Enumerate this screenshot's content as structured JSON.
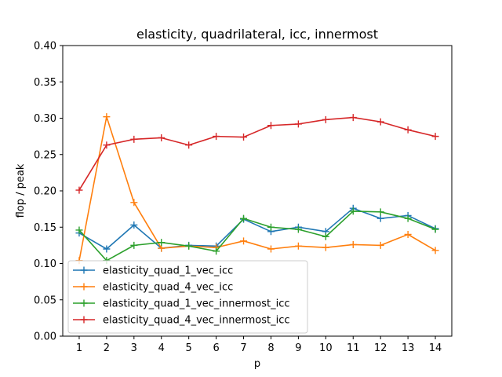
{
  "chart_data": {
    "type": "line",
    "title": "elasticity, quadrilateral, icc, innermost",
    "xlabel": "p",
    "ylabel": "flop / peak",
    "x": [
      1,
      2,
      3,
      4,
      5,
      6,
      7,
      8,
      9,
      10,
      11,
      12,
      13,
      14
    ],
    "xticks": [
      "1",
      "2",
      "3",
      "4",
      "5",
      "6",
      "7",
      "8",
      "9",
      "10",
      "11",
      "12",
      "13",
      "14"
    ],
    "ylim": [
      0.0,
      0.4
    ],
    "yticks": [
      "0.00",
      "0.05",
      "0.10",
      "0.15",
      "0.20",
      "0.25",
      "0.30",
      "0.35",
      "0.40"
    ],
    "grid": false,
    "legend_position": "lower-left",
    "marker": "plus",
    "series": [
      {
        "name": "elasticity_quad_1_vec_icc",
        "color": "#1f77b4",
        "values": [
          0.142,
          0.12,
          0.153,
          0.121,
          0.125,
          0.124,
          0.161,
          0.144,
          0.15,
          0.144,
          0.176,
          0.162,
          0.166,
          0.148
        ]
      },
      {
        "name": "elasticity_quad_4_vec_icc",
        "color": "#ff7f0e",
        "values": [
          0.104,
          0.302,
          0.184,
          0.121,
          0.124,
          0.122,
          0.131,
          0.12,
          0.124,
          0.122,
          0.126,
          0.125,
          0.14,
          0.118
        ]
      },
      {
        "name": "elasticity_quad_1_vec_innermost_icc",
        "color": "#2ca02c",
        "values": [
          0.146,
          0.104,
          0.125,
          0.129,
          0.124,
          0.117,
          0.162,
          0.15,
          0.147,
          0.137,
          0.172,
          0.171,
          0.162,
          0.147
        ]
      },
      {
        "name": "elasticity_quad_4_vec_innermost_icc",
        "color": "#d62728",
        "values": [
          0.201,
          0.263,
          0.271,
          0.273,
          0.263,
          0.275,
          0.274,
          0.29,
          0.292,
          0.298,
          0.301,
          0.295,
          0.284,
          0.275
        ]
      }
    ]
  }
}
